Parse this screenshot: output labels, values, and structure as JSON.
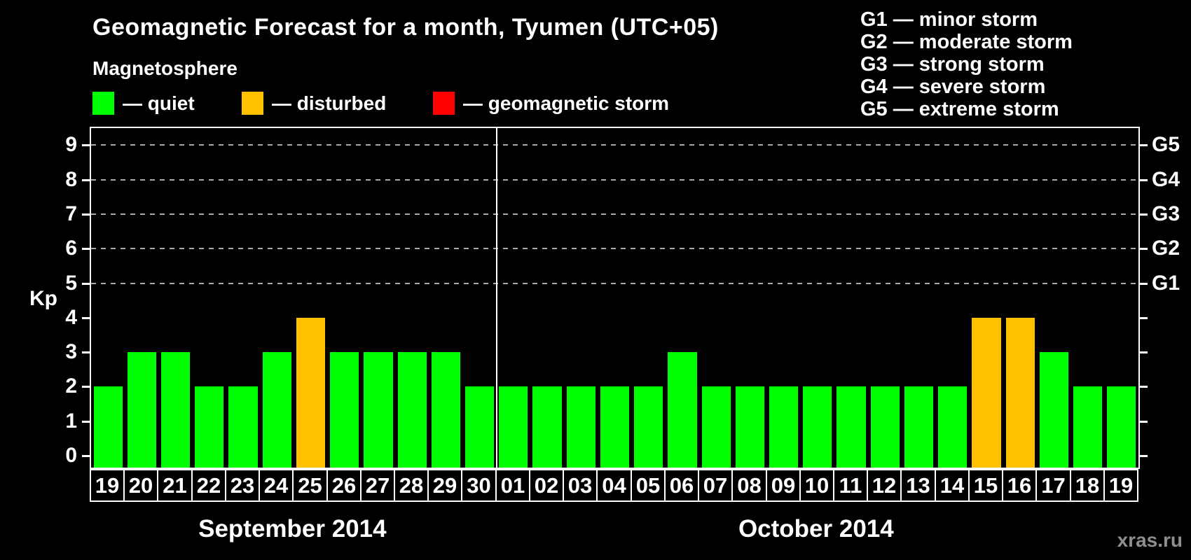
{
  "title": "Geomagnetic Forecast for a month, Tyumen (UTC+05)",
  "subtitle": "Magnetosphere",
  "status_legend": [
    {
      "name": "quiet",
      "label": "— quiet",
      "color": "#00ff00"
    },
    {
      "name": "disturbed",
      "label": "— disturbed",
      "color": "#ffc000"
    },
    {
      "name": "storm",
      "label": "— geomagnetic storm",
      "color": "#ff0000"
    }
  ],
  "g_scale_legend": [
    "G1 — minor storm",
    "G2 — moderate storm",
    "G3 — strong storm",
    "G4 — severe storm",
    "G5 — extreme storm"
  ],
  "watermark": "xras.ru",
  "colors": {
    "background": "#000000",
    "text": "#ffffff",
    "gridline": "#aaaaaa",
    "quiet": "#00ff00",
    "disturbed": "#ffc000",
    "storm": "#ff0000",
    "watermark": "#8f8f8f"
  },
  "chart_data": {
    "type": "bar",
    "ylabel": "Kp",
    "ylim": [
      0,
      9.5
    ],
    "yticks": [
      0,
      1,
      2,
      3,
      4,
      5,
      6,
      7,
      8,
      9
    ],
    "gridlines_at": [
      5,
      6,
      7,
      8,
      9
    ],
    "grid": "dashed, horizontal, levels 5-9 only",
    "legend_position": "top",
    "right_axis_labels": [
      {
        "kp": 5,
        "label": "G1"
      },
      {
        "kp": 6,
        "label": "G2"
      },
      {
        "kp": 7,
        "label": "G3"
      },
      {
        "kp": 8,
        "label": "G4"
      },
      {
        "kp": 9,
        "label": "G5"
      }
    ],
    "color_rules": {
      "quiet_max_kp": 3,
      "disturbed_kp": 4,
      "storm_min_kp": 5
    },
    "groups": [
      {
        "month": "September 2014",
        "days": [
          "19",
          "20",
          "21",
          "22",
          "23",
          "24",
          "25",
          "26",
          "27",
          "28",
          "29",
          "30"
        ],
        "values": [
          2,
          3,
          3,
          2,
          2,
          3,
          4,
          3,
          3,
          3,
          3,
          2
        ]
      },
      {
        "month": "October 2014",
        "days": [
          "01",
          "02",
          "03",
          "04",
          "05",
          "06",
          "07",
          "08",
          "09",
          "10",
          "11",
          "12",
          "13",
          "14",
          "15",
          "16",
          "17",
          "18",
          "19"
        ],
        "values": [
          2,
          2,
          2,
          2,
          2,
          3,
          2,
          2,
          2,
          2,
          2,
          2,
          2,
          2,
          4,
          4,
          3,
          2,
          2
        ]
      }
    ]
  }
}
